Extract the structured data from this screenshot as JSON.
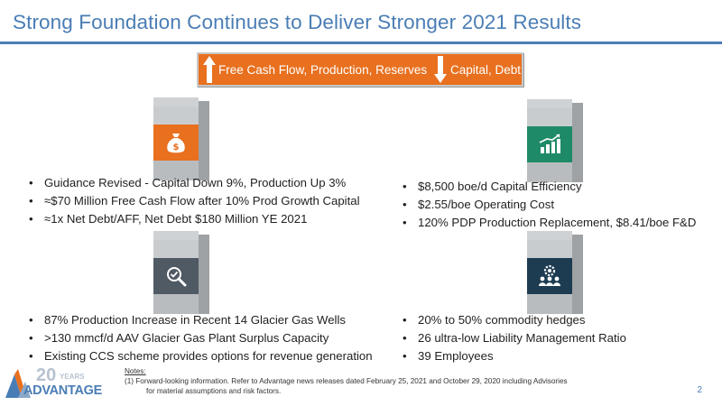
{
  "title": "Strong Foundation Continues to Deliver Stronger 2021 Results",
  "banner": {
    "up_text": "Free Cash Flow, Production, Reserves",
    "down_text": "Capital, Debt"
  },
  "quadrants": {
    "top_left": {
      "icon": "money-bag-icon",
      "color": "#e8701f",
      "bullets": [
        "Guidance Revised - Capital Down 9%, Production Up 3%",
        "≈$70 Million Free Cash Flow after 10% Prod Growth Capital",
        "≈1x Net Debt/AFF, Net Debt $180 Million YE 2021"
      ]
    },
    "top_right": {
      "icon": "bar-chart-growth-icon",
      "color": "#1f8a67",
      "bullets": [
        "$8,500 boe/d Capital Efficiency",
        "$2.55/boe Operating Cost",
        "120% PDP Production Replacement, $8.41/boe F&D"
      ]
    },
    "bottom_left": {
      "icon": "magnifier-check-icon",
      "color": "#505a64",
      "bullets": [
        "87% Production Increase in Recent 14 Glacier Gas Wells",
        ">130 mmcf/d AAV Glacier Gas Plant Surplus Capacity",
        "Existing CCS scheme provides options for revenue generation"
      ]
    },
    "bottom_right": {
      "icon": "team-gear-icon",
      "color": "#1d3c52",
      "bullets": [
        "20% to 50% commodity hedges",
        "26 ultra-low Liability Management Ratio",
        "39 Employees"
      ]
    }
  },
  "logo": {
    "years_number": "20",
    "years_word": "YEARS",
    "name": "ADVANTAGE"
  },
  "notes": {
    "heading": "Notes:",
    "items": [
      "(1)  Forward-looking information. Refer to Advantage news releases dated February 25, 2021 and October 29, 2020 including Advisories",
      "for material assumptions and risk factors."
    ]
  },
  "page_number": "2"
}
